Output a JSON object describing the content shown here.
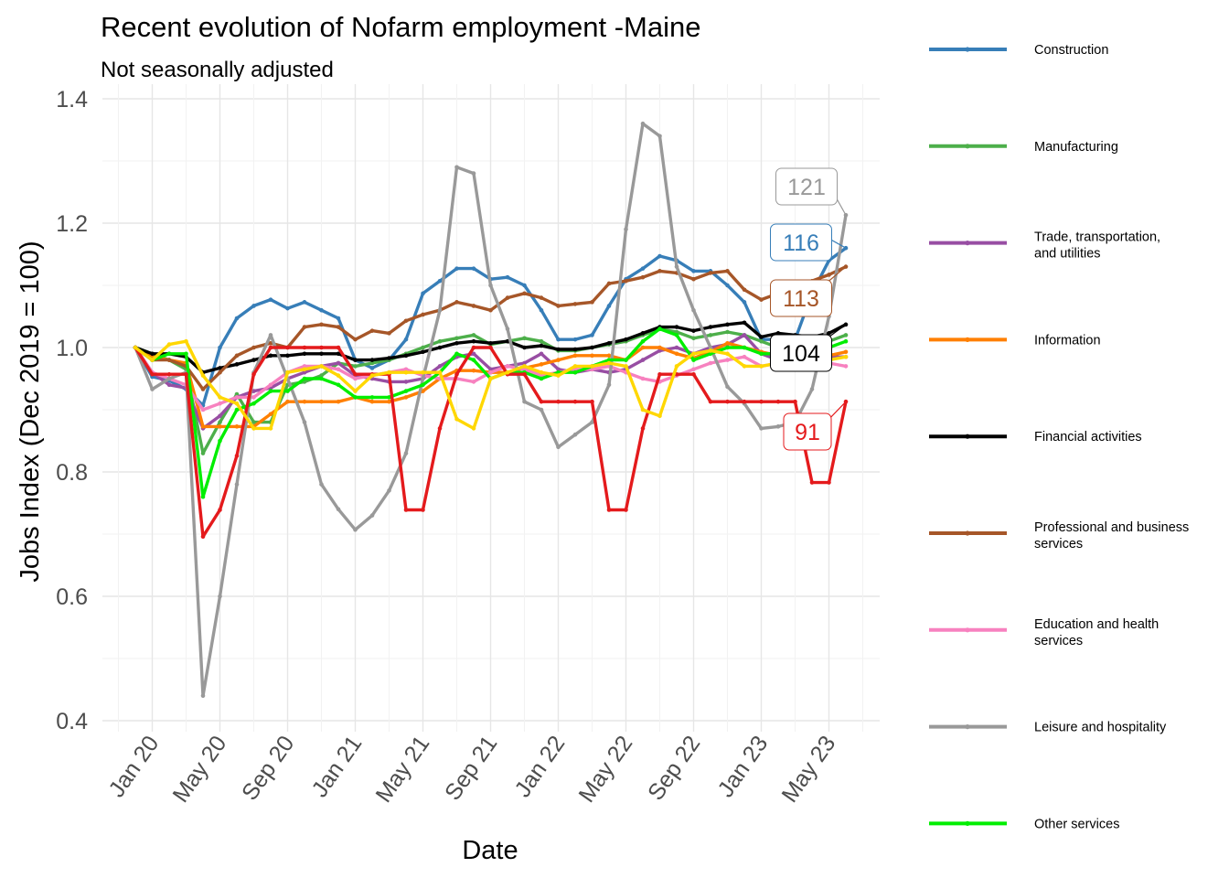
{
  "title": "Recent evolution of Nofarm employment -Maine",
  "subtitle": "Not seasonally adjusted",
  "chart_data": {
    "type": "line",
    "title": "Recent evolution of Nofarm employment -Maine",
    "subtitle": "Not seasonally adjusted",
    "xlabel": "Date",
    "ylabel": "Jobs Index (Dec 2019 = 100)",
    "ylim": [
      0.4,
      1.4
    ],
    "yticks": [
      0.4,
      0.6,
      0.8,
      1.0,
      1.2,
      1.4
    ],
    "ytick_labels": [
      "0.4",
      "0.6",
      "0.8",
      "1.0",
      "1.2",
      "1.4"
    ],
    "x_start": "Dec 2019",
    "x_end": "Jun 2023",
    "xtick_labels": [
      "Jan 20",
      "May 20",
      "Sep 20",
      "Jan 21",
      "May 21",
      "Sep 21",
      "Jan 22",
      "May 22",
      "Sep 22",
      "Jan 23",
      "May 23"
    ],
    "xtick_months": [
      1,
      5,
      9,
      13,
      17,
      21,
      25,
      29,
      33,
      37,
      41
    ],
    "grid": true,
    "legend_position": "right",
    "series": [
      {
        "name": "Construction",
        "color": "#377eb8",
        "values": [
          1.0,
          0.953,
          0.947,
          0.933,
          0.907,
          1.0,
          1.047,
          1.067,
          1.077,
          1.063,
          1.073,
          1.06,
          1.047,
          0.98,
          0.967,
          0.98,
          1.013,
          1.087,
          1.107,
          1.127,
          1.127,
          1.11,
          1.113,
          1.1,
          1.06,
          1.013,
          1.013,
          1.02,
          1.067,
          1.11,
          1.127,
          1.147,
          1.14,
          1.123,
          1.123,
          1.1,
          1.073,
          1.013,
          1.013,
          1.013,
          1.087,
          1.14,
          1.16
        ]
      },
      {
        "name": "Manufacturing",
        "color": "#4daf4a",
        "values": [
          1.0,
          0.99,
          0.98,
          0.965,
          0.83,
          0.88,
          0.925,
          0.88,
          0.88,
          0.94,
          0.945,
          0.955,
          0.975,
          0.97,
          0.975,
          0.98,
          0.99,
          1.0,
          1.01,
          1.015,
          1.02,
          1.005,
          1.01,
          1.015,
          1.01,
          0.995,
          0.995,
          1.0,
          1.005,
          1.01,
          1.02,
          1.03,
          1.025,
          1.015,
          1.02,
          1.025,
          1.02,
          1.01,
          1.0,
          0.99,
          1.0,
          1.01,
          1.02
        ]
      },
      {
        "name": "Trade, transportation,\nand utilities",
        "color": "#984ea3",
        "values": [
          1.0,
          0.96,
          0.94,
          0.935,
          0.87,
          0.89,
          0.92,
          0.93,
          0.935,
          0.95,
          0.96,
          0.97,
          0.975,
          0.955,
          0.95,
          0.945,
          0.945,
          0.95,
          0.97,
          0.985,
          0.99,
          0.965,
          0.97,
          0.975,
          0.99,
          0.965,
          0.96,
          0.965,
          0.96,
          0.965,
          0.98,
          0.995,
          1.0,
          0.99,
          1.0,
          1.005,
          1.02,
          0.99,
          0.98,
          0.98,
          0.985,
          0.985,
          0.985
        ]
      },
      {
        "name": "Information",
        "color": "#ff7f00",
        "values": [
          1.0,
          0.985,
          0.98,
          0.975,
          0.873,
          0.873,
          0.873,
          0.873,
          0.893,
          0.913,
          0.913,
          0.913,
          0.913,
          0.92,
          0.913,
          0.913,
          0.92,
          0.93,
          0.95,
          0.963,
          0.963,
          0.96,
          0.96,
          0.967,
          0.973,
          0.98,
          0.987,
          0.987,
          0.987,
          0.98,
          1.0,
          1.0,
          0.99,
          0.983,
          0.993,
          1.007,
          1.0,
          0.993,
          0.987,
          0.987,
          0.987,
          0.987,
          0.993
        ]
      },
      {
        "name": "Financial activities",
        "color": "#000000",
        "values": [
          1.0,
          0.99,
          0.99,
          0.985,
          0.96,
          0.967,
          0.973,
          0.98,
          0.987,
          0.987,
          0.99,
          0.99,
          0.99,
          0.98,
          0.98,
          0.983,
          0.987,
          0.993,
          1.0,
          1.007,
          1.01,
          1.007,
          1.01,
          1.0,
          1.003,
          0.997,
          0.997,
          1.0,
          1.007,
          1.013,
          1.023,
          1.033,
          1.033,
          1.027,
          1.033,
          1.037,
          1.04,
          1.017,
          1.023,
          1.02,
          1.017,
          1.023,
          1.037
        ]
      },
      {
        "name": "Professional and business\nservices",
        "color": "#a65628",
        "values": [
          1.0,
          0.98,
          0.98,
          0.97,
          0.933,
          0.96,
          0.987,
          1.0,
          1.007,
          1.0,
          1.033,
          1.037,
          1.033,
          1.013,
          1.027,
          1.023,
          1.043,
          1.053,
          1.06,
          1.073,
          1.067,
          1.06,
          1.08,
          1.087,
          1.08,
          1.067,
          1.07,
          1.073,
          1.103,
          1.107,
          1.113,
          1.123,
          1.12,
          1.11,
          1.12,
          1.123,
          1.093,
          1.077,
          1.087,
          1.093,
          1.107,
          1.117,
          1.13
        ]
      },
      {
        "name": "Education and health\nservices",
        "color": "#f781bf",
        "values": [
          1.0,
          0.96,
          0.95,
          0.94,
          0.9,
          0.91,
          0.92,
          0.92,
          0.94,
          0.96,
          0.97,
          0.97,
          0.965,
          0.95,
          0.955,
          0.96,
          0.965,
          0.955,
          0.95,
          0.95,
          0.945,
          0.96,
          0.97,
          0.965,
          0.955,
          0.96,
          0.965,
          0.965,
          0.97,
          0.96,
          0.95,
          0.945,
          0.955,
          0.965,
          0.975,
          0.98,
          0.985,
          0.97,
          0.975,
          0.98,
          0.98,
          0.975,
          0.97
        ]
      },
      {
        "name": "Leisure and hospitality",
        "color": "#999999",
        "values": [
          1.0,
          0.933,
          0.95,
          0.96,
          0.44,
          0.6,
          0.78,
          0.96,
          1.02,
          0.95,
          0.88,
          0.78,
          0.74,
          0.707,
          0.73,
          0.77,
          0.83,
          0.95,
          1.06,
          1.29,
          1.28,
          1.1,
          1.03,
          0.913,
          0.9,
          0.84,
          0.86,
          0.88,
          0.94,
          1.19,
          1.36,
          1.34,
          1.13,
          1.06,
          1.0,
          0.937,
          0.91,
          0.87,
          0.873,
          0.88,
          0.933,
          1.05,
          1.213
        ]
      },
      {
        "name": "Other services",
        "color": "#00ee00",
        "values": [
          1.0,
          0.98,
          0.99,
          0.99,
          0.76,
          0.85,
          0.9,
          0.91,
          0.93,
          0.93,
          0.95,
          0.95,
          0.94,
          0.92,
          0.92,
          0.92,
          0.93,
          0.94,
          0.96,
          0.99,
          0.98,
          0.95,
          0.96,
          0.96,
          0.95,
          0.96,
          0.96,
          0.97,
          0.98,
          0.98,
          1.01,
          1.03,
          1.02,
          0.98,
          0.99,
          1.0,
          1.0,
          0.99,
          0.99,
          0.98,
          0.99,
          1.0,
          1.01
        ]
      },
      {
        "name": "Unlabeled red series",
        "color": "#e41a1c",
        "in_legend": false,
        "values": [
          1.0,
          0.957,
          0.957,
          0.957,
          0.696,
          0.739,
          0.826,
          0.957,
          1.0,
          1.0,
          1.0,
          1.0,
          1.0,
          0.957,
          0.957,
          0.957,
          0.739,
          0.739,
          0.87,
          0.957,
          1.0,
          1.0,
          0.957,
          0.957,
          0.913,
          0.913,
          0.913,
          0.913,
          0.739,
          0.739,
          0.87,
          0.957,
          0.957,
          0.957,
          0.913,
          0.913,
          0.913,
          0.913,
          0.913,
          0.913,
          0.783,
          0.783,
          0.913
        ]
      },
      {
        "name": "Unlabeled gold series",
        "color": "#ffd700",
        "in_legend": false,
        "values": [
          1.0,
          0.98,
          1.005,
          1.01,
          0.955,
          0.92,
          0.91,
          0.87,
          0.87,
          0.96,
          0.965,
          0.97,
          0.955,
          0.93,
          0.955,
          0.96,
          0.96,
          0.96,
          0.96,
          0.885,
          0.87,
          0.95,
          0.96,
          0.97,
          0.96,
          0.955,
          0.97,
          0.97,
          0.975,
          0.97,
          0.9,
          0.89,
          0.97,
          0.99,
          0.995,
          0.99,
          0.97,
          0.97,
          0.975,
          0.975,
          0.98,
          0.98,
          0.985
        ]
      }
    ],
    "end_labels": [
      {
        "text": "121",
        "series": "Leisure and hospitality",
        "color": "#999999"
      },
      {
        "text": "116",
        "series": "Construction",
        "color": "#377eb8"
      },
      {
        "text": "113",
        "series": "Professional and business\nservices",
        "color": "#a65628"
      },
      {
        "text": "104",
        "series": "Financial activities",
        "color": "#000000"
      },
      {
        "text": "91",
        "series": "Unlabeled red series",
        "color": "#e41a1c"
      }
    ]
  }
}
